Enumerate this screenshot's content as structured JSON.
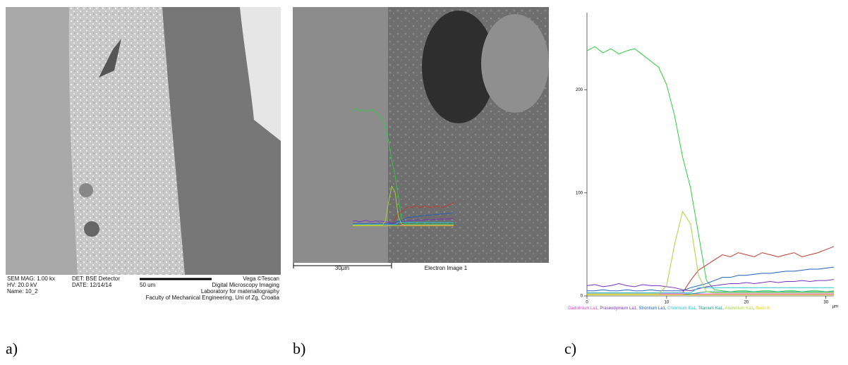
{
  "panels": [
    "a)",
    "b)",
    "c)"
  ],
  "sem_a": {
    "info_left": [
      "SEM MAG: 1.00 kx",
      "HV:  20.0 kV",
      "Name: 10_2"
    ],
    "info_mid": [
      "DET: BSE Detector",
      "DATE: 12/14/14"
    ],
    "scale": "50 um",
    "info_right": [
      "Vega ©Tescan",
      "Digital Microscopy Imaging",
      "Laboratory for materiallography",
      "Faculty of Mechanical Engineering, Uni of Zg, Croatia"
    ]
  },
  "sem_b": {
    "scale": "30µm",
    "caption": "Electron Image 1"
  },
  "chart_data": {
    "type": "line",
    "x_label": "µm",
    "x": [
      0,
      1,
      2,
      3,
      4,
      5,
      6,
      7,
      8,
      9,
      10,
      11,
      12,
      13,
      14,
      15,
      16,
      17,
      18,
      19,
      20,
      21,
      22,
      23,
      24,
      25,
      26,
      27,
      28,
      29,
      30,
      31
    ],
    "xlim": [
      0,
      31
    ],
    "xticks": [
      0,
      10,
      20,
      30
    ],
    "ylim": [
      0,
      275
    ],
    "yticks": [
      0,
      100,
      200
    ],
    "series": [
      {
        "color": "#2ecc40",
        "values": [
          238,
          242,
          236,
          240,
          235,
          238,
          240,
          234,
          228,
          222,
          205,
          175,
          135,
          105,
          60,
          15,
          6,
          5,
          4,
          5,
          5,
          4,
          5,
          5,
          4,
          5,
          5,
          4,
          5,
          5,
          4,
          5
        ]
      },
      {
        "color": "#c0392b",
        "values": [
          3,
          3,
          3,
          3,
          3,
          3,
          3,
          3,
          3,
          3,
          3,
          3,
          3,
          15,
          25,
          30,
          35,
          40,
          38,
          42,
          40,
          38,
          42,
          40,
          38,
          40,
          42,
          38,
          40,
          42,
          45,
          48
        ]
      },
      {
        "name": "Gadolinium La1",
        "color": "#d63bd6",
        "values": [
          2,
          2,
          2,
          2,
          2,
          2,
          2,
          2,
          2,
          2,
          2,
          2,
          2,
          2,
          2,
          2,
          2,
          2,
          2,
          2,
          2,
          2,
          2,
          2,
          2,
          2,
          2,
          2,
          2,
          2,
          2,
          2
        ]
      },
      {
        "name": "Praseodymium La1",
        "color": "#7b2fbe",
        "values": [
          10,
          11,
          9,
          10,
          12,
          10,
          9,
          11,
          10,
          10,
          9,
          8,
          6,
          5,
          7,
          9,
          10,
          11,
          12,
          12,
          13,
          12,
          13,
          14,
          13,
          14,
          14,
          15,
          14,
          15,
          15,
          16
        ]
      },
      {
        "name": "Strontium La1",
        "color": "#1f5fbf",
        "values": [
          5,
          5,
          6,
          5,
          5,
          6,
          5,
          5,
          6,
          5,
          5,
          5,
          5,
          8,
          10,
          12,
          15,
          18,
          18,
          20,
          20,
          21,
          22,
          22,
          23,
          24,
          24,
          25,
          26,
          26,
          27,
          28
        ]
      },
      {
        "name": "Chromium Ka1",
        "color": "#22c7d6",
        "values": [
          3,
          3,
          3,
          3,
          3,
          3,
          3,
          3,
          3,
          3,
          3,
          3,
          3,
          3,
          8,
          8,
          8,
          8,
          8,
          8,
          8,
          8,
          8,
          8,
          8,
          8,
          8,
          8,
          8,
          8,
          8,
          8
        ]
      },
      {
        "name": "Titanium Ka1",
        "color": "#16a085",
        "values": [
          1,
          1,
          1,
          1,
          1,
          1,
          1,
          1,
          1,
          1,
          1,
          1,
          1,
          2,
          3,
          4,
          4,
          4,
          4,
          4,
          4,
          4,
          4,
          4,
          4,
          4,
          4,
          4,
          4,
          4,
          4,
          4
        ]
      },
      {
        "name": "Aluminium Ka1",
        "color": "#a4d63b",
        "values": [
          2,
          2,
          2,
          2,
          2,
          2,
          2,
          2,
          2,
          2,
          10,
          50,
          82,
          70,
          20,
          4,
          3,
          3,
          3,
          3,
          3,
          3,
          3,
          3,
          3,
          3,
          3,
          3,
          3,
          3,
          3,
          3
        ]
      },
      {
        "name": "Neon K",
        "color": "#e6d200",
        "values": [
          1,
          1,
          1,
          1,
          1,
          1,
          1,
          1,
          1,
          1,
          1,
          1,
          1,
          1,
          1,
          1,
          1,
          1,
          1,
          1,
          1,
          1,
          1,
          1,
          1,
          1,
          1,
          1,
          1,
          1,
          1,
          1
        ]
      }
    ]
  }
}
